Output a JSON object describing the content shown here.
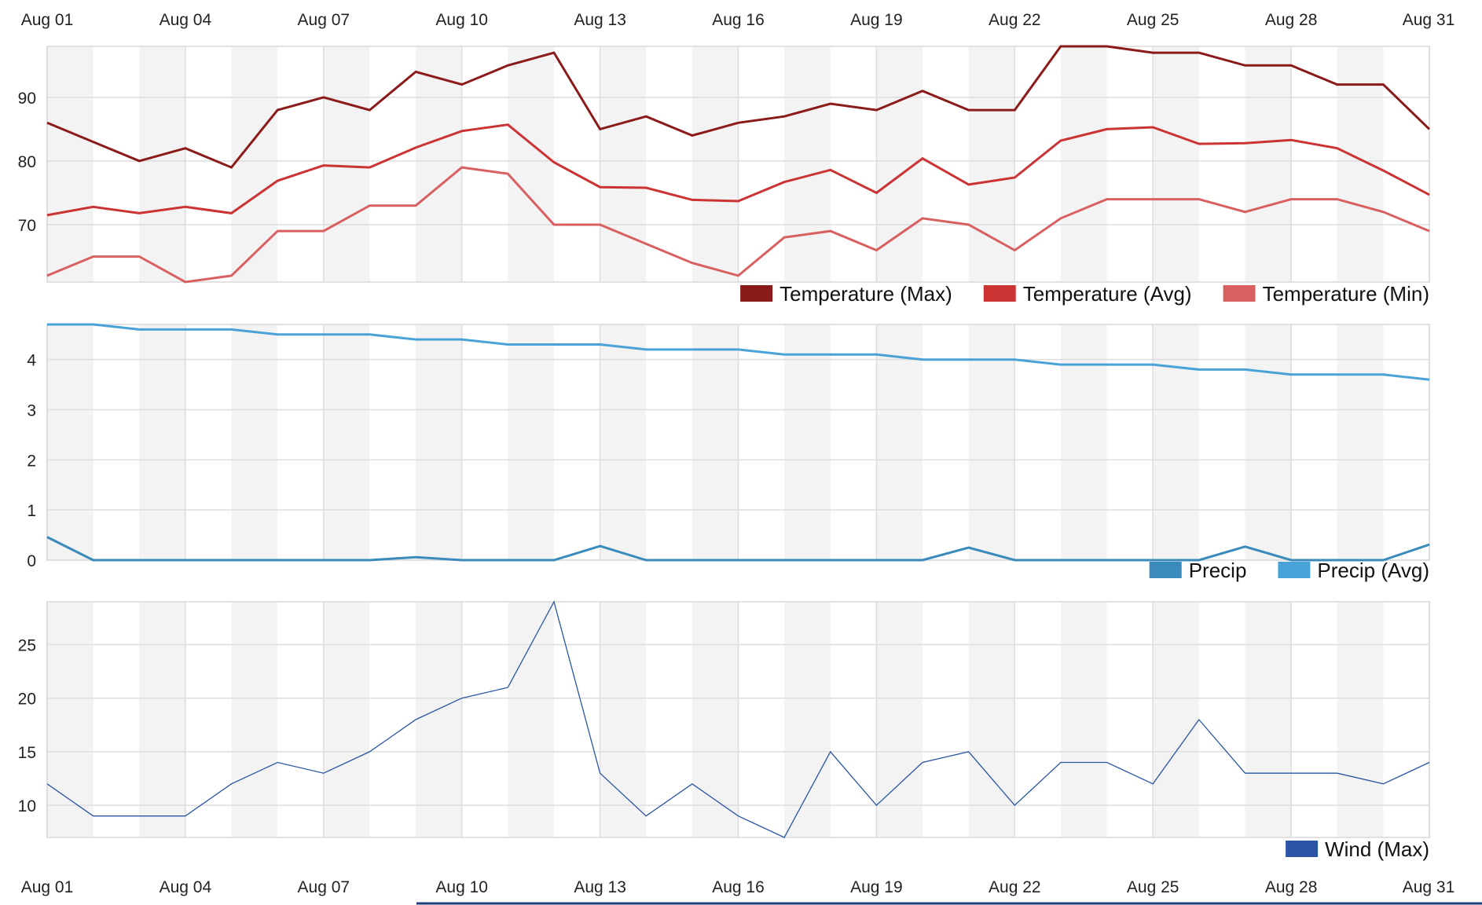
{
  "chart_data": [
    {
      "type": "line",
      "x": [
        "Aug 01",
        "Aug 02",
        "Aug 03",
        "Aug 04",
        "Aug 05",
        "Aug 06",
        "Aug 07",
        "Aug 08",
        "Aug 09",
        "Aug 10",
        "Aug 11",
        "Aug 12",
        "Aug 13",
        "Aug 14",
        "Aug 15",
        "Aug 16",
        "Aug 17",
        "Aug 18",
        "Aug 19",
        "Aug 20",
        "Aug 21",
        "Aug 22",
        "Aug 23",
        "Aug 24",
        "Aug 25",
        "Aug 26",
        "Aug 27",
        "Aug 28",
        "Aug 29",
        "Aug 30",
        "Aug 31"
      ],
      "xticks": [
        "Aug 01",
        "Aug 04",
        "Aug 07",
        "Aug 10",
        "Aug 13",
        "Aug 16",
        "Aug 19",
        "Aug 22",
        "Aug 25",
        "Aug 28",
        "Aug 31"
      ],
      "yticks": [
        70,
        80,
        90
      ],
      "ylim": [
        61,
        98
      ],
      "legend": "bottom-right",
      "grid": true,
      "series": [
        {
          "name": "Temperature (Max)",
          "color": "#8b1a1a",
          "width": 3,
          "values": [
            86,
            83,
            80,
            82,
            79,
            88,
            90,
            88,
            94,
            92,
            95,
            97,
            85,
            87,
            84,
            86,
            87,
            89,
            88,
            91,
            88,
            88,
            98,
            98,
            97,
            97,
            95,
            95,
            92,
            92,
            85
          ]
        },
        {
          "name": "Temperature (Avg)",
          "color": "#cc3333",
          "width": 3,
          "values": [
            71.5,
            72.8,
            71.8,
            72.8,
            71.8,
            76.9,
            79.3,
            79,
            82.1,
            84.7,
            85.7,
            79.8,
            75.9,
            75.8,
            73.9,
            73.7,
            76.7,
            78.6,
            75,
            80.4,
            76.3,
            77.4,
            83.2,
            85,
            85.3,
            82.7,
            82.8,
            83.3,
            82,
            78.5,
            74.7
          ]
        },
        {
          "name": "Temperature (Min)",
          "color": "#d96060",
          "width": 3,
          "values": [
            62,
            65,
            65,
            61,
            62,
            69,
            69,
            73,
            73,
            79,
            78,
            70,
            70,
            67,
            64,
            62,
            68,
            69,
            66,
            71,
            70,
            66,
            71,
            74,
            74,
            74,
            72,
            74,
            74,
            72,
            69
          ]
        }
      ]
    },
    {
      "type": "line",
      "x": [
        "Aug 01",
        "Aug 02",
        "Aug 03",
        "Aug 04",
        "Aug 05",
        "Aug 06",
        "Aug 07",
        "Aug 08",
        "Aug 09",
        "Aug 10",
        "Aug 11",
        "Aug 12",
        "Aug 13",
        "Aug 14",
        "Aug 15",
        "Aug 16",
        "Aug 17",
        "Aug 18",
        "Aug 19",
        "Aug 20",
        "Aug 21",
        "Aug 22",
        "Aug 23",
        "Aug 24",
        "Aug 25",
        "Aug 26",
        "Aug 27",
        "Aug 28",
        "Aug 29",
        "Aug 30",
        "Aug 31"
      ],
      "yticks": [
        0,
        1,
        2,
        3,
        4
      ],
      "ylim": [
        0,
        4.7
      ],
      "legend": "bottom-right",
      "grid": true,
      "series": [
        {
          "name": "Precip",
          "color": "#3a8bbb",
          "width": 3,
          "values": [
            0.46,
            0,
            0,
            0,
            0,
            0,
            0,
            0,
            0.06,
            0,
            0,
            0,
            0.28,
            0,
            0,
            0,
            0,
            0,
            0,
            0,
            0.25,
            0,
            0,
            0,
            0,
            0,
            0.27,
            0,
            0,
            0,
            0.31
          ]
        },
        {
          "name": "Precip (Avg)",
          "color": "#4aa3d8",
          "width": 3,
          "values": [
            4.7,
            4.7,
            4.6,
            4.6,
            4.6,
            4.5,
            4.5,
            4.5,
            4.4,
            4.4,
            4.3,
            4.3,
            4.3,
            4.2,
            4.2,
            4.2,
            4.1,
            4.1,
            4.1,
            4.0,
            4.0,
            4.0,
            3.9,
            3.9,
            3.9,
            3.8,
            3.8,
            3.7,
            3.7,
            3.7,
            3.6
          ]
        }
      ]
    },
    {
      "type": "line",
      "x": [
        "Aug 01",
        "Aug 02",
        "Aug 03",
        "Aug 04",
        "Aug 05",
        "Aug 06",
        "Aug 07",
        "Aug 08",
        "Aug 09",
        "Aug 10",
        "Aug 11",
        "Aug 12",
        "Aug 13",
        "Aug 14",
        "Aug 15",
        "Aug 16",
        "Aug 17",
        "Aug 18",
        "Aug 19",
        "Aug 20",
        "Aug 21",
        "Aug 22",
        "Aug 23",
        "Aug 24",
        "Aug 25",
        "Aug 26",
        "Aug 27",
        "Aug 28",
        "Aug 29",
        "Aug 30",
        "Aug 31"
      ],
      "xticks": [
        "Aug 01",
        "Aug 04",
        "Aug 07",
        "Aug 10",
        "Aug 13",
        "Aug 16",
        "Aug 19",
        "Aug 22",
        "Aug 25",
        "Aug 28",
        "Aug 31"
      ],
      "yticks": [
        10,
        15,
        20,
        25
      ],
      "ylim": [
        7,
        29
      ],
      "legend": "bottom-right",
      "grid": true,
      "series": [
        {
          "name": "Wind (Max)",
          "color": "#2a55a5",
          "width": 1.3,
          "values": [
            12,
            9,
            9,
            9,
            12,
            14,
            13,
            15,
            18,
            20,
            21,
            29,
            13,
            9,
            12,
            9,
            7,
            15,
            10,
            14,
            15,
            10,
            14,
            14,
            12,
            18,
            13,
            13,
            13,
            12,
            14
          ]
        }
      ]
    }
  ]
}
